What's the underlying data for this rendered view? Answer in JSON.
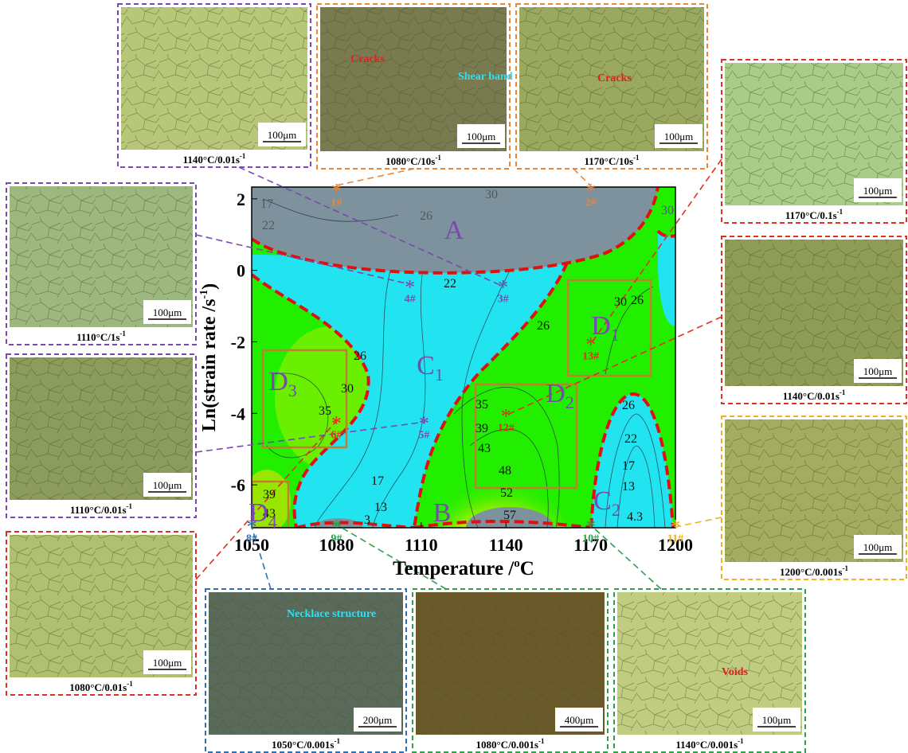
{
  "map": {
    "xlabel": {
      "text": "Temperature /",
      "sup": "o",
      "end": "C"
    },
    "ylabel": {
      "text": "Ln(strain rate /s",
      "sup": "-1",
      "end": ")"
    },
    "xlim": [
      1050,
      1200
    ],
    "ylim": [
      -7.2,
      2.33
    ],
    "xticks": [
      1050,
      1080,
      1110,
      1140,
      1170,
      1200
    ],
    "yticks": [
      2,
      0,
      -2,
      -4,
      -6
    ],
    "contour_labels": [
      22,
      26,
      30,
      26,
      30,
      26,
      30,
      35,
      39,
      43,
      17,
      13,
      35,
      39,
      43,
      48,
      52,
      57,
      26,
      22,
      17,
      13,
      4.3,
      26,
      30,
      17,
      22,
      3
    ],
    "regions": [
      {
        "letter": "A",
        "sub": ""
      },
      {
        "letter": "B",
        "sub": ""
      },
      {
        "letter": "C",
        "sub": "1"
      },
      {
        "letter": "C",
        "sub": "2"
      },
      {
        "letter": "D",
        "sub": "1"
      },
      {
        "letter": "D",
        "sub": "2"
      },
      {
        "letter": "D",
        "sub": "3"
      },
      {
        "letter": "D",
        "sub": "4"
      }
    ],
    "points": [
      {
        "label": "1#",
        "T": 1080,
        "lnrate": 2.3,
        "color": "#e8863a"
      },
      {
        "label": "2#",
        "T": 1170,
        "lnrate": 2.3,
        "color": "#e8863a"
      },
      {
        "label": "3#",
        "T": 1139,
        "lnrate": -0.4,
        "color": "#7a48b0"
      },
      {
        "label": "4#",
        "T": 1106,
        "lnrate": -0.4,
        "color": "#7a48b0"
      },
      {
        "label": "5#",
        "T": 1111,
        "lnrate": -4.2,
        "color": "#7a48b0"
      },
      {
        "label": "6#",
        "T": 1080,
        "lnrate": -4.2,
        "color": "#e03020"
      },
      {
        "label": "8#",
        "T": 1050,
        "lnrate": -7.1,
        "color": "#3070b0"
      },
      {
        "label": "9#",
        "T": 1080,
        "lnrate": -7.1,
        "color": "#30a050"
      },
      {
        "label": "10#",
        "T": 1170,
        "lnrate": -7.1,
        "color": "#30a050"
      },
      {
        "label": "11#",
        "T": 1200,
        "lnrate": -7.1,
        "color": "#f0b020"
      },
      {
        "label": "12#",
        "T": 1140,
        "lnrate": -4.0,
        "color": "#e03020"
      },
      {
        "label": "13#",
        "T": 1170,
        "lnrate": -2.0,
        "color": "#e03020"
      }
    ]
  },
  "panels": [
    {
      "caption": "1140°C/0.01s",
      "sup": "-1",
      "scale": "100μm",
      "notes": []
    },
    {
      "caption": "1080°C/10s",
      "sup": "-1",
      "scale": "100μm",
      "notes": [
        "Cracks",
        "Shear band"
      ]
    },
    {
      "caption": "1170°C/10s",
      "sup": "-1",
      "scale": "100μm",
      "notes": [
        "Cracks"
      ]
    },
    {
      "caption": "1170°C/0.1s",
      "sup": "-1",
      "scale": "100μm",
      "notes": []
    },
    {
      "caption": "1140°C/0.01s",
      "sup": "-1",
      "scale": "100μm",
      "notes": []
    },
    {
      "caption": "1200°C/0.001s",
      "sup": "-1",
      "scale": "100μm",
      "notes": []
    },
    {
      "caption": "1110°C/1s",
      "sup": "-1",
      "scale": "100μm",
      "notes": []
    },
    {
      "caption": "1110°C/0.01s",
      "sup": "-1",
      "scale": "100μm",
      "notes": []
    },
    {
      "caption": "1080°C/0.01s",
      "sup": "-1",
      "scale": "100μm",
      "notes": []
    },
    {
      "caption": "1050°C/0.001s",
      "sup": "-1",
      "scale": "200μm",
      "notes": [
        "Necklace structure"
      ]
    },
    {
      "caption": "1080°C/0.001s",
      "sup": "-1",
      "scale": "400μm",
      "notes": []
    },
    {
      "caption": "1140°C/0.001s",
      "sup": "-1",
      "scale": "100μm",
      "notes": [
        "Voids"
      ]
    }
  ]
}
